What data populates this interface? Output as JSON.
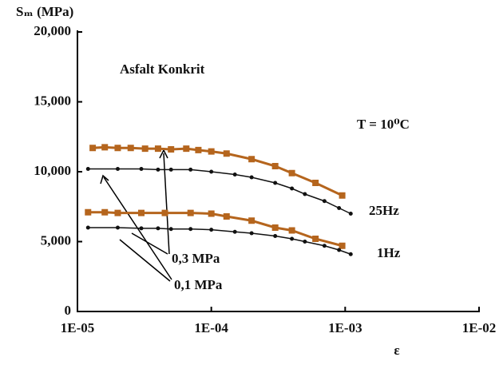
{
  "chart_data": {
    "type": "line",
    "y_label": "Sₘ (MPa)",
    "x_label": "ε",
    "annotations": [
      "Asfalt Konkrit",
      "T = 10⁰C",
      "25Hz",
      "1Hz",
      "0,3 MPa",
      "0,1 MPa"
    ],
    "xscale": "log",
    "xlim": [
      1e-05,
      0.01
    ],
    "xticks": [
      {
        "value": 1e-05,
        "label": "1E-05"
      },
      {
        "value": 0.0001,
        "label": "1E-04"
      },
      {
        "value": 0.001,
        "label": "1E-03"
      },
      {
        "value": 0.01,
        "label": "1E-02"
      }
    ],
    "ylim": [
      0,
      20000
    ],
    "yticks": [
      0,
      {
        "value": 5000,
        "label": "5,000"
      },
      {
        "value": 10000,
        "label": "10,000"
      },
      {
        "value": 15000,
        "label": "15,000"
      },
      {
        "value": 20000,
        "label": "20,000"
      }
    ],
    "series": [
      {
        "color": "#b5651d",
        "marker": "square",
        "x": [
          1.3e-05,
          1.6e-05,
          2e-05,
          2.5e-05,
          3.2e-05,
          4e-05,
          5e-05,
          6.5e-05,
          8e-05,
          0.0001,
          0.00013,
          0.0002,
          0.0003,
          0.0004,
          0.0006,
          0.00095
        ],
        "values": [
          11700,
          11750,
          11700,
          11700,
          11650,
          11650,
          11600,
          11650,
          11550,
          11450,
          11300,
          10900,
          10400,
          9900,
          9200,
          8300
        ]
      },
      {
        "color": "#111111",
        "marker": "dot",
        "x": [
          1.2e-05,
          2e-05,
          3e-05,
          4e-05,
          5e-05,
          7e-05,
          0.0001,
          0.00015,
          0.0002,
          0.0003,
          0.0004,
          0.0005,
          0.0007,
          0.0009,
          0.0011
        ],
        "values": [
          10200,
          10200,
          10200,
          10150,
          10150,
          10150,
          10000,
          9800,
          9600,
          9200,
          8800,
          8400,
          7900,
          7400,
          7000
        ]
      },
      {
        "color": "#b5651d",
        "marker": "square",
        "x": [
          1.2e-05,
          1.6e-05,
          2e-05,
          3e-05,
          4.5e-05,
          7e-05,
          0.0001,
          0.00013,
          0.0002,
          0.0003,
          0.0004,
          0.0006,
          0.00095
        ],
        "values": [
          7100,
          7100,
          7050,
          7050,
          7050,
          7050,
          7000,
          6800,
          6500,
          6000,
          5800,
          5200,
          4700
        ]
      },
      {
        "color": "#111111",
        "marker": "dot",
        "x": [
          1.2e-05,
          2e-05,
          3e-05,
          4e-05,
          5e-05,
          7e-05,
          0.0001,
          0.00015,
          0.0002,
          0.0003,
          0.0004,
          0.0005,
          0.0007,
          0.0009,
          0.0011
        ],
        "values": [
          6000,
          6000,
          5950,
          5950,
          5900,
          5900,
          5850,
          5700,
          5600,
          5400,
          5200,
          5000,
          4700,
          4400,
          4100
        ]
      }
    ]
  }
}
